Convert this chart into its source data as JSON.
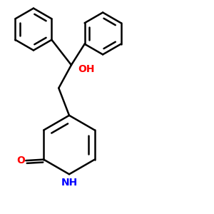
{
  "background": "#ffffff",
  "bond_color": "#000000",
  "bond_width": 1.8,
  "O_color": "#ff0000",
  "N_color": "#0000ff",
  "OH_color": "#ff0000",
  "font_size": 10,
  "figsize": [
    3.0,
    3.0
  ],
  "dpi": 100,
  "xlim": [
    0,
    10
  ],
  "ylim": [
    0,
    10
  ]
}
